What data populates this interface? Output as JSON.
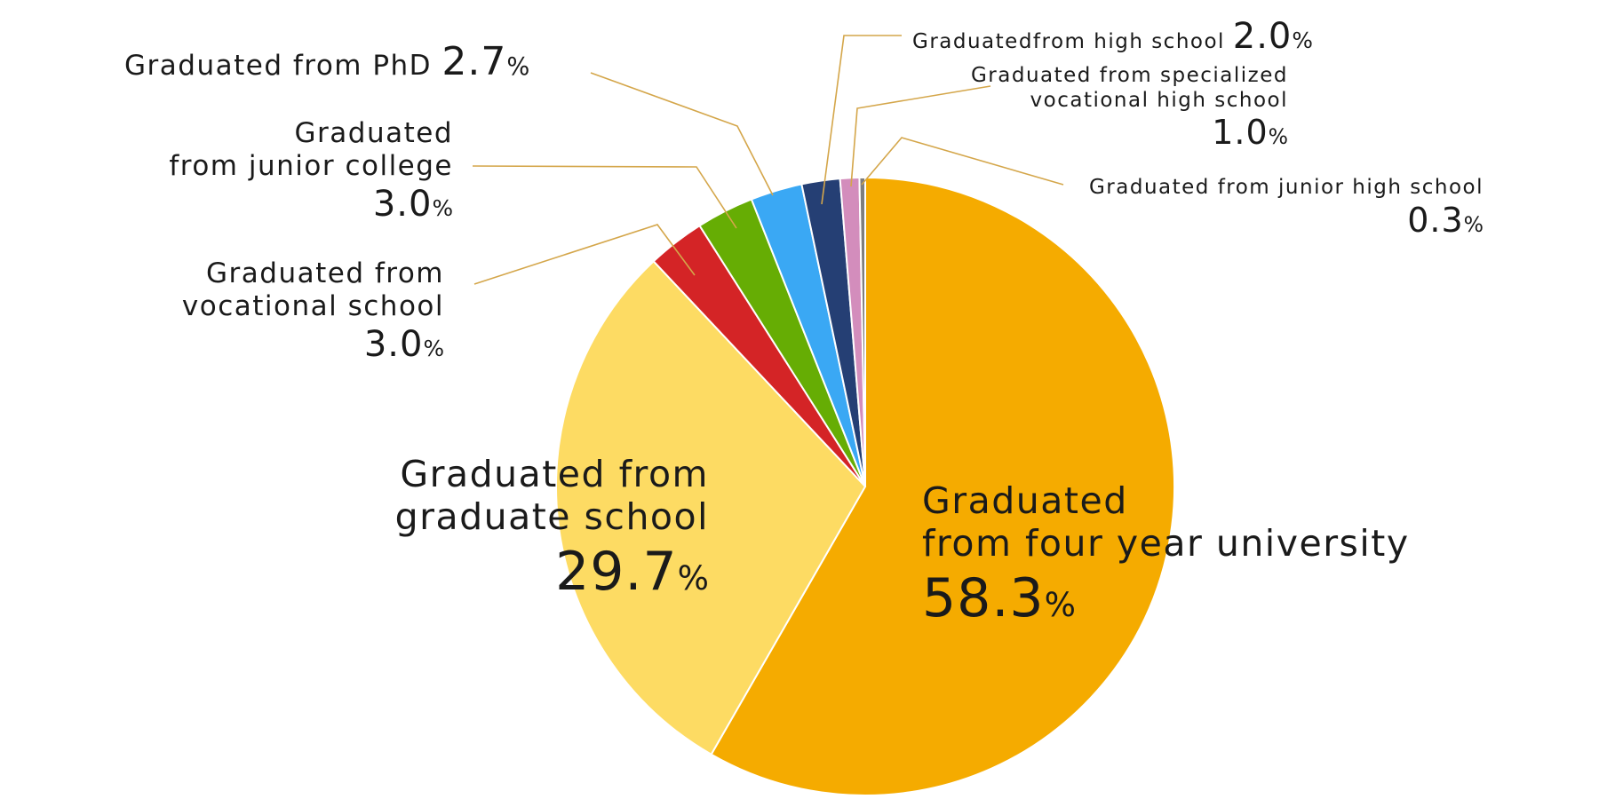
{
  "chart_data": {
    "type": "pie",
    "unit": "%",
    "slices": [
      {
        "name": "Graduated from four year university",
        "lines": [
          "Graduated",
          "from four year university"
        ],
        "value": 58.3,
        "value_label": "58.3",
        "color": "#F5AB00"
      },
      {
        "name": "Graduated from graduate school",
        "lines": [
          "Graduated from",
          "graduate school"
        ],
        "value": 29.7,
        "value_label": "29.7",
        "color": "#FDDB63"
      },
      {
        "name": "Graduated from vocational school",
        "lines": [
          "Graduated from",
          "vocational school"
        ],
        "value": 3.0,
        "value_label": "3.0",
        "color": "#D42426"
      },
      {
        "name": "Graduated from junior college",
        "lines": [
          "Graduated",
          "from junior college"
        ],
        "value": 3.0,
        "value_label": "3.0",
        "color": "#66AD04"
      },
      {
        "name": "Graduated from PhD",
        "lines": [
          "Graduated from PhD"
        ],
        "value": 2.7,
        "value_label": "2.7",
        "color": "#3AA8F4"
      },
      {
        "name": "Graduatedfrom high school",
        "lines": [
          "Graduatedfrom high school"
        ],
        "value": 2.0,
        "value_label": "2.0",
        "color": "#253F74"
      },
      {
        "name": "Graduated from specialized vocational high school",
        "lines": [
          "Graduated from specialized",
          "vocational high school"
        ],
        "value": 1.0,
        "value_label": "1.0",
        "color": "#D38DBC"
      },
      {
        "name": "Graduated from junior high school",
        "lines": [
          "Graduated from junior high school"
        ],
        "value": 0.3,
        "value_label": "0.3",
        "color": "#7E7E7E"
      }
    ],
    "start": "12 o'clock",
    "direction": "clockwise",
    "leader_line_color": "#D4A64A"
  }
}
